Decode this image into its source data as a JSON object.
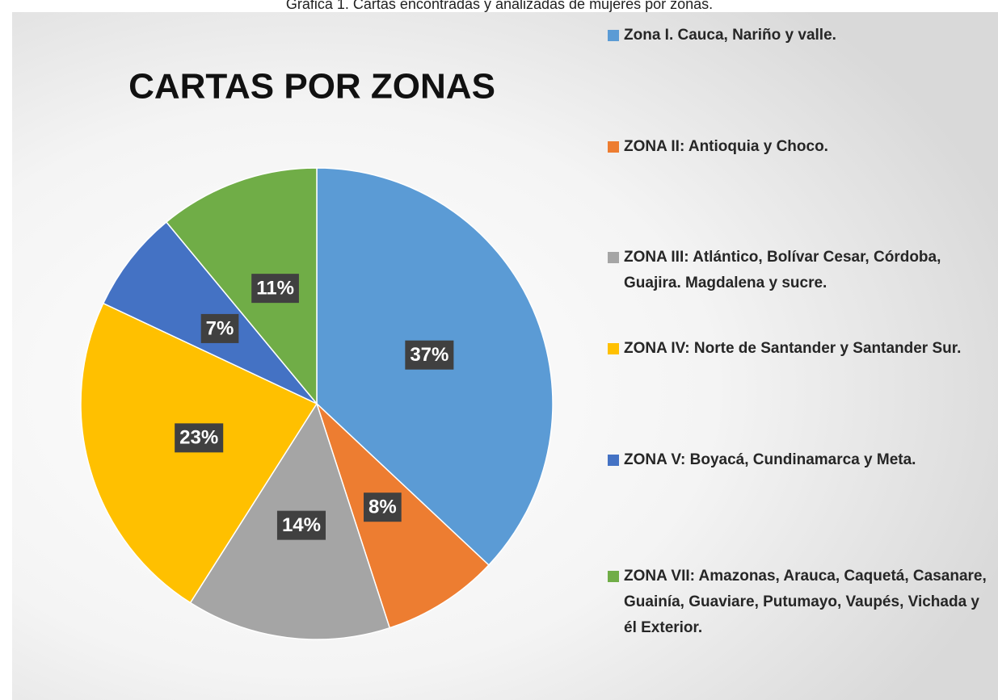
{
  "chart_data": {
    "type": "pie",
    "caption": "Gráfica 1. Cartas encontradas y analizadas de mujeres por zonas.",
    "title": "CARTAS POR ZONAS",
    "categories": [
      "Zona I. Cauca, Nariño y valle.",
      "ZONA II: Antioquia y Choco.",
      "ZONA III: Atlántico, Bolívar Cesar, Córdoba, Guajira. Magdalena y sucre.",
      "ZONA IV: Norte de Santander y Santander Sur.",
      "ZONA V: Boyacá, Cundinamarca y Meta.",
      "ZONA VII: Amazonas, Arauca, Caquetá, Casanare, Guainía, Guaviare, Putumayo, Vaupés, Vichada y él Exterior."
    ],
    "values": [
      37,
      8,
      14,
      23,
      7,
      11
    ],
    "value_labels": [
      "37%",
      "8%",
      "14%",
      "23%",
      "7%",
      "11%"
    ],
    "colors": [
      "#5B9BD5",
      "#ED7D31",
      "#A5A5A5",
      "#FFC000",
      "#4472C4",
      "#70AD47"
    ],
    "legend": "right"
  }
}
